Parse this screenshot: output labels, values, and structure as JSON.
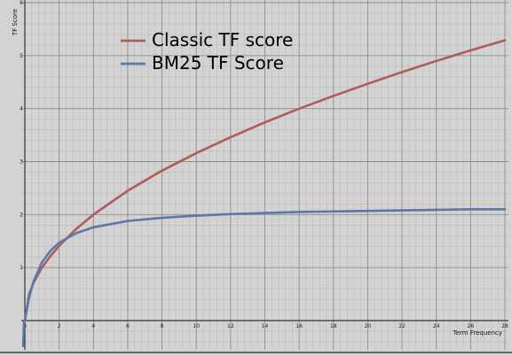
{
  "chart_data": {
    "type": "line",
    "xlabel": "Term Frequency",
    "ylabel": "TF Score",
    "xlim": [
      -0.1,
      28
    ],
    "ylim": [
      -1,
      6
    ],
    "x_ticks": [
      0,
      2,
      4,
      6,
      8,
      10,
      12,
      14,
      16,
      18,
      20,
      22,
      24,
      26,
      28
    ],
    "y_ticks": [
      1,
      2,
      3,
      4,
      5,
      6
    ],
    "grid": true,
    "legend": "top-left",
    "series": [
      {
        "name": "Classic TF score",
        "color": "#b05a5a",
        "x": [
          0,
          0.25,
          0.5,
          1,
          1.5,
          2,
          3,
          4,
          6,
          8,
          10,
          12,
          14,
          16,
          18,
          20,
          22,
          24,
          26,
          28
        ],
        "y": [
          0,
          0.5,
          0.71,
          1,
          1.22,
          1.41,
          1.73,
          2,
          2.45,
          2.83,
          3.16,
          3.46,
          3.74,
          4,
          4.24,
          4.47,
          4.69,
          4.9,
          5.1,
          5.29
        ]
      },
      {
        "name": "BM25 TF Score",
        "color": "#5a78a8",
        "x": [
          0,
          0.25,
          0.5,
          1,
          1.5,
          2,
          3,
          4,
          6,
          8,
          10,
          12,
          14,
          16,
          18,
          20,
          22,
          24,
          26,
          28
        ],
        "y": [
          0,
          0.44,
          0.73,
          1.1,
          1.32,
          1.47,
          1.65,
          1.76,
          1.88,
          1.94,
          1.98,
          2.01,
          2.03,
          2.05,
          2.06,
          2.07,
          2.08,
          2.09,
          2.1,
          2.1
        ]
      }
    ]
  }
}
